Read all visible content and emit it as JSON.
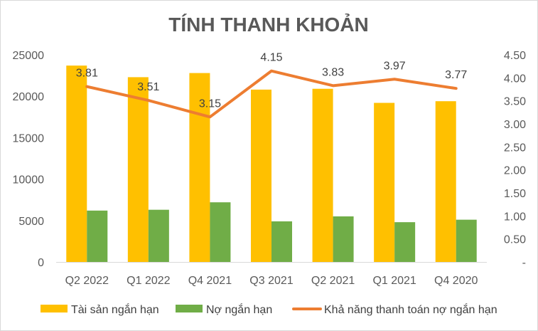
{
  "chart_data": {
    "type": "bar",
    "title": "TÍNH THANH KHOẢN",
    "categories": [
      "Q2 2022",
      "Q1 2022",
      "Q4 2021",
      "Q3 2021",
      "Q2 2021",
      "Q1 2021",
      "Q4 2020"
    ],
    "series": [
      {
        "name": "Tài sản ngắn hạn",
        "type": "bar",
        "axis": "left",
        "color": "#FFC000",
        "values": [
          23700,
          22300,
          22800,
          20800,
          20900,
          19200,
          19400
        ]
      },
      {
        "name": "Nợ ngắn hạn",
        "type": "bar",
        "axis": "left",
        "color": "#70AD47",
        "values": [
          6200,
          6300,
          7200,
          4900,
          5500,
          4800,
          5100
        ]
      },
      {
        "name": "Khả năng thanh toán nợ ngắn hạn",
        "type": "line",
        "axis": "right",
        "color": "#ED7D31",
        "values": [
          3.81,
          3.51,
          3.15,
          4.15,
          3.83,
          3.97,
          3.77
        ],
        "labels": [
          "3.81",
          "3.51",
          "3.15",
          "4.15",
          "3.83",
          "3.97",
          "3.77"
        ]
      }
    ],
    "y_left": {
      "min": 0,
      "max": 25000,
      "ticks": [
        "0",
        "5000",
        "10000",
        "15000",
        "20000",
        "25000"
      ]
    },
    "y_right": {
      "min": 0,
      "max": 4.5,
      "ticks": [
        "-",
        "0.50",
        "1.00",
        "1.50",
        "2.00",
        "2.50",
        "3.00",
        "3.50",
        "4.00",
        "4.50"
      ]
    },
    "grid": false,
    "legend_position": "bottom"
  }
}
